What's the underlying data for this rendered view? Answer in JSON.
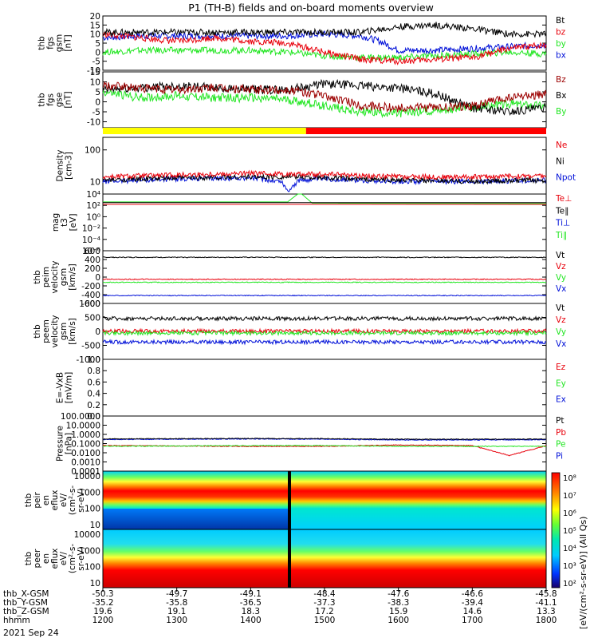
{
  "title": "P1 (TH-B) fields and on-board moments overview",
  "date_label": "2021 Sep 24",
  "colors": {
    "black": "#000000",
    "red": "#e8000b",
    "green": "#22e622",
    "blue": "#0010d8",
    "dark_red": "#9c0000",
    "yellow": "#ffff00",
    "bar_red": "#ff0000"
  },
  "orbit_table": {
    "row_labels": [
      "thb_X-GSM",
      "thb_Y-GSM",
      "thb_Z-GSM",
      "hhmm"
    ],
    "columns": [
      {
        "t": 1200,
        "values": [
          "-50.3",
          "-35.2",
          "19.6",
          "1200"
        ]
      },
      {
        "t": 1300,
        "values": [
          "-49.7",
          "-35.8",
          "19.1",
          "1300"
        ]
      },
      {
        "t": 1400,
        "values": [
          "-49.1",
          "-36.5",
          "18.3",
          "1400"
        ]
      },
      {
        "t": 1500,
        "values": [
          "-48.4",
          "-37.3",
          "17.2",
          "1500"
        ]
      },
      {
        "t": 1600,
        "values": [
          "-47.6",
          "-38.3",
          "15.9",
          "1600"
        ]
      },
      {
        "t": 1700,
        "values": [
          "-46.6",
          "-39.4",
          "14.6",
          "1700"
        ]
      },
      {
        "t": 1800,
        "values": [
          "-45.8",
          "-41.1",
          "13.3",
          "1800"
        ]
      }
    ]
  },
  "chart_data": [
    {
      "id": "fgs_gsm",
      "type": "line",
      "ylabel": [
        "thb",
        "fgs",
        "gsm",
        "[nT]"
      ],
      "ylim": [
        -10,
        20
      ],
      "ticks": [
        "20",
        "15",
        "10",
        "5",
        "0",
        "-5",
        "-10"
      ],
      "tick_values": [
        20,
        15,
        10,
        5,
        0,
        -5,
        -10
      ],
      "legend": [
        "Bt",
        "bz",
        "by",
        "bx"
      ],
      "series": [
        {
          "name": "bx",
          "color": "blue",
          "t": [
            1200,
            1230,
            1300,
            1330,
            1400,
            1430,
            1500,
            1530,
            1545,
            1600,
            1630,
            1700,
            1730,
            1800
          ],
          "v": [
            8,
            9,
            9,
            9,
            9,
            9,
            10,
            9,
            6,
            1,
            1,
            2,
            3,
            4
          ]
        },
        {
          "name": "by",
          "color": "green",
          "t": [
            1200,
            1230,
            1300,
            1330,
            1400,
            1430,
            1500,
            1530,
            1600,
            1630,
            1700,
            1730,
            1800
          ],
          "v": [
            0,
            1,
            1,
            1,
            1,
            0,
            -2,
            -3,
            -3,
            -2,
            -1,
            0,
            -1
          ]
        },
        {
          "name": "bz",
          "color": "red",
          "t": [
            1200,
            1230,
            1300,
            1330,
            1400,
            1430,
            1500,
            1530,
            1600,
            1630,
            1700,
            1730,
            1800
          ],
          "v": [
            10,
            8,
            6,
            8,
            6,
            5,
            0,
            -4,
            -5,
            -4,
            -3,
            2,
            4
          ]
        },
        {
          "name": "Bt",
          "color": "black",
          "t": [
            1200,
            1230,
            1300,
            1330,
            1400,
            1430,
            1500,
            1530,
            1600,
            1630,
            1700,
            1730,
            1800
          ],
          "v": [
            11,
            11,
            11,
            11,
            11,
            11,
            11,
            11,
            14,
            15,
            13,
            10,
            10
          ]
        }
      ]
    },
    {
      "id": "fgs_gse",
      "type": "line",
      "ylabel": [
        "thb",
        "fgs",
        "gse",
        "[nT]"
      ],
      "ylim": [
        -13,
        15
      ],
      "ticks": [
        "15",
        "10",
        "5",
        "0",
        "-5",
        "-10"
      ],
      "tick_values": [
        15,
        10,
        5,
        0,
        -5,
        -10
      ],
      "legend": [
        "Bz",
        "Bx",
        "By"
      ],
      "series": [
        {
          "name": "By",
          "color": "green",
          "t": [
            1200,
            1230,
            1300,
            1330,
            1400,
            1430,
            1500,
            1530,
            1600,
            1630,
            1700,
            1730,
            1800
          ],
          "v": [
            5,
            2,
            3,
            2,
            2,
            1,
            -2,
            -5,
            -6,
            -4,
            -3,
            -1,
            -2
          ]
        },
        {
          "name": "Bx",
          "color": "black",
          "t": [
            1200,
            1230,
            1300,
            1330,
            1400,
            1430,
            1500,
            1530,
            1600,
            1630,
            1700,
            1730,
            1800
          ],
          "v": [
            6,
            7,
            8,
            7,
            6,
            6,
            9,
            8,
            7,
            4,
            -3,
            -5,
            -3
          ]
        },
        {
          "name": "Bz",
          "color": "dark_red",
          "t": [
            1200,
            1230,
            1300,
            1330,
            1400,
            1430,
            1500,
            1530,
            1600,
            1630,
            1700,
            1730,
            1800
          ],
          "v": [
            8,
            7,
            6,
            7,
            6,
            6,
            3,
            -2,
            -3,
            -3,
            -2,
            2,
            4
          ]
        }
      ]
    },
    {
      "id": "density",
      "type": "line",
      "log": true,
      "ylabel": [
        "Density",
        "[cm-3]"
      ],
      "ylim": [
        4,
        250
      ],
      "ticks": [
        "100",
        "10"
      ],
      "tick_values": [
        100,
        10
      ],
      "legend": [
        "Ne",
        "Ni",
        "Npot"
      ],
      "series": [
        {
          "name": "Npot",
          "color": "blue",
          "t": [
            1200,
            1300,
            1400,
            1425,
            1430,
            1440,
            1500,
            1600,
            1700,
            1800
          ],
          "v": [
            10,
            12,
            13,
            10,
            5,
            11,
            12,
            10,
            10,
            11
          ]
        },
        {
          "name": "Ni",
          "color": "black",
          "t": [
            1200,
            1300,
            1400,
            1440,
            1500,
            1600,
            1700,
            1800
          ],
          "v": [
            11,
            13,
            14,
            14,
            13,
            11,
            10,
            11
          ]
        },
        {
          "name": "Ne",
          "color": "red",
          "t": [
            1200,
            1300,
            1400,
            1440,
            1500,
            1600,
            1700,
            1800
          ],
          "v": [
            14,
            16,
            18,
            17,
            17,
            14,
            14,
            15
          ]
        }
      ]
    },
    {
      "id": "temperature",
      "type": "line",
      "log": true,
      "ylabel": [
        "mag",
        "t3",
        "[eV]"
      ],
      "ylim": [
        1e-06,
        10000
      ],
      "ticks": [
        "10⁴",
        "10²",
        "10⁰",
        "10⁻²",
        "10⁻⁴",
        "10⁻⁶"
      ],
      "tick_values": [
        10000,
        100,
        1,
        0.01,
        0.0001,
        1e-06
      ],
      "legend": [
        "Te⊥",
        "Te∥",
        "Ti⊥",
        "Ti∥"
      ],
      "series": [
        {
          "name": "Ti∥",
          "color": "green",
          "t": [
            1200,
            1430,
            1440,
            1450,
            1800
          ],
          "v": [
            400,
            400,
            20000,
            250,
            200
          ]
        },
        {
          "name": "Te∥",
          "color": "black",
          "t": [
            1200,
            1800
          ],
          "v": [
            300,
            300
          ]
        },
        {
          "name": "Te⊥",
          "color": "red",
          "t": [
            1200,
            1800
          ],
          "v": [
            150,
            150
          ]
        }
      ]
    },
    {
      "id": "peim_velocity",
      "type": "line",
      "ylabel": [
        "thb",
        "peim",
        "velocity",
        "gsm",
        "[km/s]"
      ],
      "ylim": [
        -600,
        600
      ],
      "ticks": [
        "600",
        "400",
        "200",
        "0",
        "-200",
        "-400",
        "-600"
      ],
      "tick_values": [
        600,
        400,
        200,
        0,
        -200,
        -400,
        -600
      ],
      "legend": [
        "Vt",
        "Vz",
        "Vy",
        "Vx"
      ],
      "series": [
        {
          "name": "Vt",
          "color": "black",
          "t": [
            1200,
            1800
          ],
          "v": [
            450,
            450
          ]
        },
        {
          "name": "Vz",
          "color": "red",
          "t": [
            1200,
            1800
          ],
          "v": [
            -50,
            -50
          ]
        },
        {
          "name": "Vy",
          "color": "green",
          "t": [
            1200,
            1800
          ],
          "v": [
            -120,
            -120
          ]
        },
        {
          "name": "Vx",
          "color": "blue",
          "t": [
            1200,
            1800
          ],
          "v": [
            -420,
            -420
          ]
        }
      ]
    },
    {
      "id": "peem_velocity",
      "type": "line",
      "ylabel": [
        "thb",
        "peem",
        "velocity",
        "gsm",
        "[km/s]"
      ],
      "ylim": [
        -1000,
        1000
      ],
      "ticks": [
        "1000",
        "500",
        "0",
        "-500",
        "-1000"
      ],
      "tick_values": [
        1000,
        500,
        0,
        -500,
        -1000
      ],
      "legend": [
        "Vt",
        "Vz",
        "Vy",
        "Vx"
      ],
      "series": [
        {
          "name": "Vt",
          "color": "black",
          "t": [
            1200,
            1800
          ],
          "v": [
            460,
            460
          ]
        },
        {
          "name": "Vz",
          "color": "red",
          "t": [
            1200,
            1800
          ],
          "v": [
            10,
            10
          ]
        },
        {
          "name": "Vy",
          "color": "green",
          "t": [
            1200,
            1800
          ],
          "v": [
            -60,
            -60
          ]
        },
        {
          "name": "Vx",
          "color": "blue",
          "t": [
            1200,
            1800
          ],
          "v": [
            -380,
            -380
          ]
        }
      ]
    },
    {
      "id": "efield",
      "type": "line",
      "ylabel": [
        "E=-VxB",
        "[mV/m]"
      ],
      "ylim": [
        0,
        1
      ],
      "ticks": [
        "1.0",
        "0.8",
        "0.6",
        "0.4",
        "0.2",
        "0.0"
      ],
      "tick_values": [
        1,
        0.8,
        0.6,
        0.4,
        0.2,
        0
      ],
      "legend": [
        "Ez",
        "Ey",
        "Ex"
      ],
      "series": []
    },
    {
      "id": "pressure",
      "type": "line",
      "log": true,
      "ylabel": [
        "Pressure",
        "[nPa]"
      ],
      "ylim": [
        0.0001,
        100
      ],
      "ticks": [
        "100.0000",
        "10.0000",
        "1.0000",
        "0.1000",
        "0.0100",
        "0.0010",
        "0.0001"
      ],
      "tick_values": [
        100,
        10,
        1,
        0.1,
        0.01,
        0.001,
        0.0001
      ],
      "legend": [
        "Pt",
        "Pb",
        "Pe",
        "Pi"
      ],
      "series": [
        {
          "name": "Pi",
          "color": "blue",
          "t": [
            1200,
            1400,
            1500,
            1600,
            1700,
            1800
          ],
          "v": [
            0.28,
            0.32,
            0.3,
            0.25,
            0.25,
            0.27
          ]
        },
        {
          "name": "Pt",
          "color": "black",
          "t": [
            1200,
            1400,
            1500,
            1600,
            1700,
            1800
          ],
          "v": [
            0.32,
            0.36,
            0.34,
            0.3,
            0.3,
            0.31
          ]
        },
        {
          "name": "Pb",
          "color": "red",
          "t": [
            1200,
            1400,
            1500,
            1600,
            1700,
            1730,
            1800
          ],
          "v": [
            0.06,
            0.05,
            0.05,
            0.07,
            0.06,
            0.005,
            0.06
          ]
        },
        {
          "name": "Pe",
          "color": "green",
          "t": [
            1200,
            1400,
            1500,
            1600,
            1700,
            1800
          ],
          "v": [
            0.05,
            0.06,
            0.06,
            0.05,
            0.05,
            0.05
          ]
        }
      ]
    },
    {
      "id": "peir_spec",
      "type": "heatmap",
      "ylabel": [
        "thb",
        "peir",
        "en",
        "eflux",
        "eV/",
        "(cm²-s-",
        "sr-eV)"
      ],
      "ticks": [
        "10000",
        "1000",
        "100",
        "10"
      ],
      "tick_values": [
        10000,
        1000,
        100,
        10
      ],
      "ylim": [
        5,
        20000
      ]
    },
    {
      "id": "peer_spec",
      "type": "heatmap",
      "ylabel": [
        "thb",
        "peer",
        "en",
        "eflux",
        "eV/",
        "(cm²-s-",
        "sr-eV)"
      ],
      "ticks": [
        "10000",
        "1000",
        "100",
        "10"
      ],
      "tick_values": [
        10000,
        1000,
        100,
        10
      ],
      "ylim": [
        5,
        20000
      ]
    }
  ],
  "colorbar": {
    "ticks": [
      "10⁸",
      "10⁷",
      "10⁶",
      "10⁵",
      "10⁴",
      "10³",
      "10²"
    ],
    "label": "[eV/(cm²-s-sr-eV)] (All Qs)"
  },
  "mode_bar": {
    "segments": [
      {
        "from": 1200,
        "to": 1445,
        "color": "yellow"
      },
      {
        "from": 1445,
        "to": 1800,
        "color": "bar_red"
      }
    ]
  }
}
